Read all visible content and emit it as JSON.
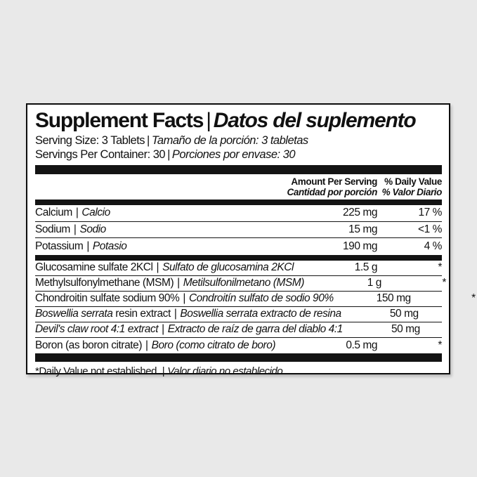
{
  "sep": "|",
  "colors": {
    "background": "#e9e9e9",
    "panel": "#ffffff",
    "bar": "#141414",
    "text": "#111111"
  },
  "label": {
    "title": {
      "en": "Supplement Facts",
      "es": "Datos del suplemento"
    },
    "serving_size": {
      "en": "Serving Size: 3 Tablets",
      "es": "Tamaño de la porción: 3 tabletas"
    },
    "servings_per_container": {
      "en": "Servings Per Container: 30",
      "es": "Porciones por envase: 30"
    },
    "columns": {
      "amount": {
        "en": "Amount Per Serving",
        "es": "Cantidad por porción"
      },
      "daily_value": {
        "en": "% Daily Value",
        "es": "% Valor Diario"
      }
    },
    "footnote": {
      "en": "*Daily Value not established.",
      "es": "Valor diario no establecido."
    }
  },
  "rows_minerals": [
    {
      "en": "Calcium",
      "es": "Calcio",
      "amount": "225 mg",
      "dv": "17 %"
    },
    {
      "en": "Sodium",
      "es": "Sodio",
      "amount": "15 mg",
      "dv": "<1 %"
    },
    {
      "en": "Potassium",
      "es": "Potasio",
      "amount": "190 mg",
      "dv": "4 %"
    }
  ],
  "rows_other": [
    {
      "en": "Glucosamine sulfate 2KCl",
      "es": "Sulfato de glucosamina 2KCl",
      "amount": "1.5 g",
      "dv": "*"
    },
    {
      "en": "Methylsulfonylmethane (MSM)",
      "es": "Metilsulfonilmetano (MSM)",
      "amount": "1 g",
      "dv": "*"
    },
    {
      "en": "Chondroitin sulfate sodium 90%",
      "es": "Condroitín sulfato de sodio 90%",
      "amount": "150 mg",
      "dv": "*"
    },
    {
      "en_italic": "Boswellia serrata",
      "en": " resin extract",
      "es": "Boswellia serrata extracto de resina",
      "amount": "50 mg",
      "dv": "*"
    },
    {
      "en_italic": "Devil's claw root 4:1 extract",
      "en": "",
      "es": "Extracto de raíz de garra del diablo 4:1",
      "amount": "50 mg",
      "dv": "*"
    },
    {
      "en": "Boron (as boron citrate)",
      "es": "Boro (como citrato de boro)",
      "amount": "0.5 mg",
      "dv": "*"
    }
  ]
}
